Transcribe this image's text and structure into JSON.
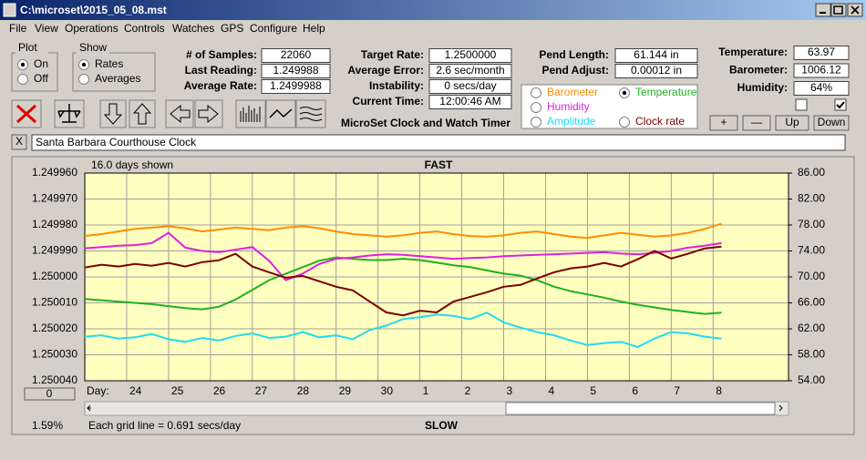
{
  "window": {
    "title": "C:\\microset\\2015_05_08.mst"
  },
  "menu": [
    "File",
    "View",
    "Operations",
    "Controls",
    "Watches",
    "GPS",
    "Configure",
    "Help"
  ],
  "plot_group": {
    "title": "Plot",
    "options": [
      "On",
      "Off"
    ],
    "selected": 0
  },
  "show_group": {
    "title": "Show",
    "options": [
      "Rates",
      "Averages"
    ],
    "selected": 0
  },
  "columns": [
    [
      {
        "label": "# of Samples:",
        "value": "22060"
      },
      {
        "label": "Last Reading:",
        "value": "1.249988"
      },
      {
        "label": "Average Rate:",
        "value": "1.2499988"
      }
    ],
    [
      {
        "label": "Target Rate:",
        "value": "1.2500000"
      },
      {
        "label": "Average Error:",
        "value": "2.6 sec/month"
      },
      {
        "label": "Instability:",
        "value": "0 secs/day"
      },
      {
        "label": "Current Time:",
        "value": "12:00:46 AM"
      }
    ],
    [
      {
        "label": "Pend Length:",
        "value": "61.144 in"
      },
      {
        "label": "Pend Adjust:",
        "value": "0.00012 in"
      }
    ],
    [
      {
        "label": "Temperature:",
        "value": "63.97"
      },
      {
        "label": "Barometer:",
        "value": "1006.12"
      },
      {
        "label": "Humidity:",
        "value": "64%"
      }
    ]
  ],
  "checkboxes": [
    false,
    true
  ],
  "buttons": [
    "+",
    "—",
    "Up",
    "Down"
  ],
  "app_name": "MicroSet Clock and Watch Timer",
  "close_label": "X",
  "clock_name": "Santa Barbara Courthouse Clock",
  "chart_data": {
    "type": "line",
    "days_shown": "16.0 days shown",
    "top_label": "FAST",
    "bottom_label": "SLOW",
    "x_label": "Day:",
    "footer": "Each grid line = 0.691 secs/day",
    "percent": "1.59%",
    "scroll_value": "0",
    "grid": true,
    "y_inverted": true,
    "xlim": [
      0,
      16.8
    ],
    "xticks": [
      {
        "value": 1,
        "label": "24"
      },
      {
        "value": 2,
        "label": "25"
      },
      {
        "value": 3,
        "label": "26"
      },
      {
        "value": 4,
        "label": "27"
      },
      {
        "value": 5,
        "label": "28"
      },
      {
        "value": 6,
        "label": "29"
      },
      {
        "value": 7,
        "label": "30"
      },
      {
        "value": 8,
        "label": "1"
      },
      {
        "value": 9,
        "label": "2"
      },
      {
        "value": 10,
        "label": "3"
      },
      {
        "value": 11,
        "label": "4"
      },
      {
        "value": 12,
        "label": "5"
      },
      {
        "value": 13,
        "label": "6"
      },
      {
        "value": 14,
        "label": "7"
      },
      {
        "value": 15,
        "label": "8"
      }
    ],
    "ylim": [
      1.24996,
      1.25004
    ],
    "yticks": [
      {
        "value": 1.24996,
        "label": "1.249960"
      },
      {
        "value": 1.24997,
        "label": "1.249970"
      },
      {
        "value": 1.24998,
        "label": "1.249980"
      },
      {
        "value": 1.24999,
        "label": "1.249990"
      },
      {
        "value": 1.25,
        "label": "1.250000"
      },
      {
        "value": 1.25001,
        "label": "1.250010"
      },
      {
        "value": 1.25002,
        "label": "1.250020"
      },
      {
        "value": 1.25003,
        "label": "1.250030"
      },
      {
        "value": 1.25004,
        "label": "1.250040"
      }
    ],
    "y2lim": [
      54,
      86
    ],
    "y2ticks": [
      {
        "value": 54,
        "label": "54.00"
      },
      {
        "value": 58,
        "label": "58.00"
      },
      {
        "value": 62,
        "label": "62.00"
      },
      {
        "value": 66,
        "label": "66.00"
      },
      {
        "value": 70,
        "label": "70.00"
      },
      {
        "value": 74,
        "label": "74.00"
      },
      {
        "value": 78,
        "label": "78.00"
      },
      {
        "value": 82,
        "label": "82.00"
      },
      {
        "value": 86,
        "label": "86.00"
      }
    ],
    "x": [
      0,
      0.4,
      0.8,
      1.2,
      1.6,
      2,
      2.4,
      2.8,
      3.2,
      3.6,
      4,
      4.4,
      4.8,
      5.2,
      5.6,
      6,
      6.4,
      6.8,
      7.2,
      7.6,
      8,
      8.4,
      8.8,
      9.2,
      9.6,
      10,
      10.4,
      10.8,
      11.2,
      11.6,
      12,
      12.4,
      12.8,
      13.2,
      13.6,
      14,
      14.4,
      14.8,
      15.2
    ],
    "series": [
      {
        "name": "Barometer",
        "color": "#ff8c00",
        "axis": "y2",
        "checked": false,
        "values": [
          76.3,
          76.6,
          77.0,
          77.4,
          77.6,
          77.8,
          77.5,
          77.0,
          77.3,
          77.6,
          77.4,
          77.2,
          77.6,
          77.8,
          77.5,
          77.0,
          76.6,
          76.4,
          76.2,
          76.4,
          76.8,
          77.0,
          76.6,
          76.3,
          76.2,
          76.4,
          76.8,
          77.0,
          76.6,
          76.2,
          76.0,
          76.4,
          76.8,
          76.5,
          76.2,
          76.4,
          76.8,
          77.4,
          78.2
        ]
      },
      {
        "name": "Temperature",
        "color": "#20b020",
        "axis": "y2",
        "checked": true,
        "values": [
          66.6,
          66.4,
          66.2,
          66.0,
          65.8,
          65.5,
          65.2,
          65.0,
          65.4,
          66.5,
          68.0,
          69.5,
          70.5,
          71.5,
          72.5,
          73.0,
          72.8,
          72.6,
          72.6,
          72.8,
          72.6,
          72.2,
          71.8,
          71.5,
          71.0,
          70.5,
          70.2,
          69.5,
          68.5,
          67.8,
          67.3,
          66.8,
          66.2,
          65.7,
          65.3,
          64.9,
          64.6,
          64.3,
          64.5
        ]
      },
      {
        "name": "Humidity",
        "color": "#e020e0",
        "axis": "y2",
        "checked": false,
        "values": [
          74.4,
          74.6,
          74.8,
          74.9,
          75.2,
          76.8,
          74.5,
          74.0,
          73.8,
          74.2,
          74.6,
          72.5,
          69.5,
          70.5,
          72.0,
          72.8,
          73.0,
          73.3,
          73.5,
          73.4,
          73.2,
          73.0,
          72.8,
          72.9,
          73.0,
          73.2,
          73.3,
          73.4,
          73.5,
          73.6,
          73.7,
          73.8,
          73.6,
          73.5,
          73.7,
          74.0,
          74.5,
          74.8,
          75.2
        ]
      },
      {
        "name": "Amplitude",
        "color": "#20dcf0",
        "axis": "y2",
        "checked": false,
        "values": [
          60.8,
          61.0,
          60.5,
          60.7,
          61.2,
          60.4,
          60.0,
          60.6,
          60.2,
          60.9,
          61.3,
          60.6,
          60.8,
          61.5,
          60.7,
          61.0,
          60.4,
          61.8,
          62.5,
          63.5,
          63.8,
          64.2,
          64.0,
          63.5,
          64.5,
          63.0,
          62.2,
          61.5,
          61.0,
          60.2,
          59.5,
          59.8,
          60.0,
          59.2,
          60.5,
          61.5,
          61.3,
          60.8,
          60.5
        ]
      },
      {
        "name": "Clock rate",
        "color": "#7a0000",
        "axis": "y",
        "checked": false,
        "values": [
          1.2499964,
          1.2499953,
          1.249996,
          1.249995,
          1.2499957,
          1.2499946,
          1.249996,
          1.2499943,
          1.2499936,
          1.2499911,
          1.249996,
          1.2499982,
          1.2500003,
          1.2499996,
          1.2500017,
          1.2500038,
          1.2500052,
          1.2500095,
          1.2500137,
          1.2500148,
          1.250013,
          1.2500137,
          1.2500095,
          1.2500077,
          1.2500059,
          1.2500038,
          1.2500031,
          1.2500006,
          1.2499982,
          1.2499967,
          1.249996,
          1.2499946,
          1.249996,
          1.2499932,
          1.24999,
          1.2499929,
          1.2499911,
          1.249989,
          1.2499883
        ]
      }
    ]
  }
}
